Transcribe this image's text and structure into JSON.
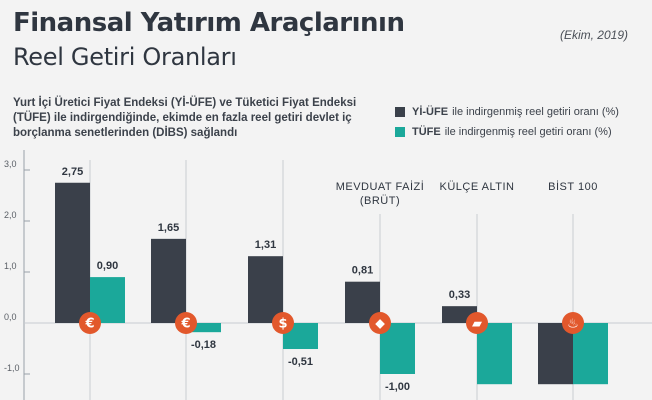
{
  "header": {
    "title_line1": "Finansal Yatırım Araçlarının",
    "title_line2": "Reel Getiri Oranları",
    "date": "(Ekim, 2019)",
    "description": "Yurt İçi Üretici Fiyat Endeksi (Yİ-ÜFE) ve Tüketici Fiyat Endeksi (TÜFE) ile indirgendiğinde, ekimde en fazla reel getiri devlet iç borçlanma senetlerinden (DİBS) sağlandı"
  },
  "legend": [
    {
      "bold": "Yİ-ÜFE",
      "text": "ile indirgenmiş reel getiri oranı (%)",
      "color": "#3a404a"
    },
    {
      "bold": "TÜFE",
      "text": "ile indirgenmiş reel getiri oranı (%)",
      "color": "#1ba89a"
    }
  ],
  "chart_data": {
    "type": "bar",
    "categories": [
      "",
      "",
      "",
      "MEVDUAT FAİZİ (BRÜT)",
      "KÜLÇE ALTIN",
      "BİST 100"
    ],
    "icons": [
      "euro-icon",
      "euro-icon",
      "dollar-icon",
      "deposit-icon",
      "gold-bars-icon",
      "stock-index-icon"
    ],
    "series": [
      {
        "name": "Yİ-ÜFE",
        "color": "#3a404a",
        "values": [
          2.75,
          1.65,
          1.31,
          0.81,
          0.33,
          -1.2
        ]
      },
      {
        "name": "TÜFE",
        "color": "#1ba89a",
        "values": [
          0.9,
          -0.18,
          -0.51,
          -1.0,
          -1.2,
          -1.2
        ]
      }
    ],
    "data_labels": [
      [
        "2,75",
        "1,65",
        "1,31",
        "0,81",
        "0,33",
        ""
      ],
      [
        "0,90",
        "-0,18",
        "-0,51",
        "-1,00",
        "",
        ""
      ]
    ],
    "yticks": [
      "3,0",
      "2,0",
      "1,0",
      "0,0",
      "-1,0"
    ],
    "ytick_values": [
      3,
      2,
      1,
      0,
      -1
    ],
    "ylim": [
      -1.6,
      3.2
    ],
    "icon_color": "#e2582c",
    "grid": false
  }
}
